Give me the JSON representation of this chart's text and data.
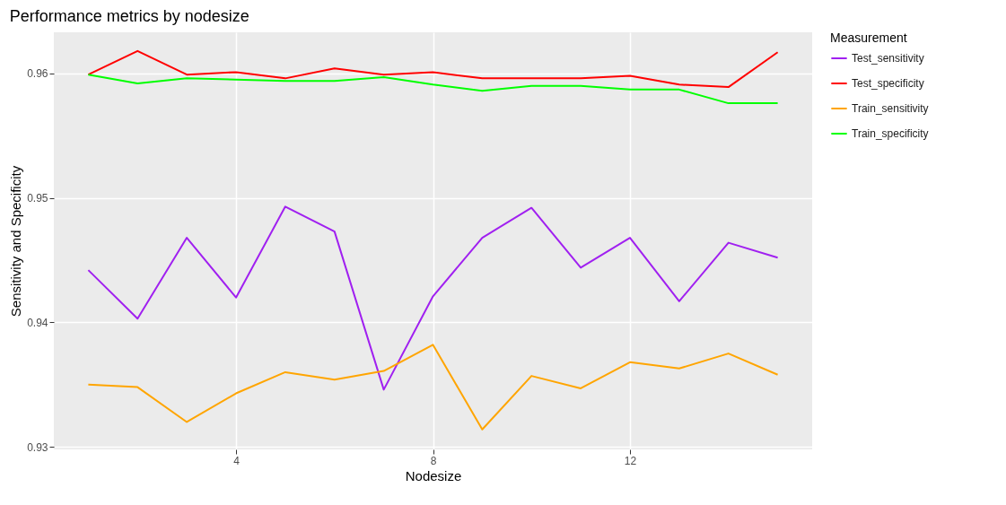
{
  "chart_data": {
    "type": "line",
    "title": "Performance metrics by nodesize",
    "xlabel": "Nodesize",
    "ylabel": "Sensitivity and Specificity",
    "legend_title": "Measurement",
    "legend": "right",
    "grid": true,
    "line_style": "solid",
    "x": [
      1,
      2,
      3,
      4,
      5,
      6,
      7,
      8,
      9,
      10,
      11,
      12,
      13,
      14,
      15
    ],
    "xlim": [
      0.3,
      15.7
    ],
    "xticks": [
      4,
      8,
      12
    ],
    "ylim": [
      0.9298,
      0.9633
    ],
    "yticks": [
      0.93,
      0.94,
      0.95,
      0.96
    ],
    "series": [
      {
        "name": "Test_sensitivity",
        "color": "#a020f0",
        "values": [
          0.9442,
          0.9403,
          0.9468,
          0.942,
          0.9493,
          0.9473,
          0.9346,
          0.9421,
          0.9468,
          0.9492,
          0.9444,
          0.9468,
          0.9417,
          0.9464,
          0.9452
        ]
      },
      {
        "name": "Test_specificity",
        "color": "#ff0000",
        "values": [
          0.9599,
          0.9618,
          0.9599,
          0.9601,
          0.9596,
          0.9604,
          0.9599,
          0.9601,
          0.9596,
          0.9596,
          0.9596,
          0.9598,
          0.9591,
          0.9589,
          0.9617
        ]
      },
      {
        "name": "Train_sensitivity",
        "color": "#ffa500",
        "values": [
          0.935,
          0.9348,
          0.932,
          0.9343,
          0.936,
          0.9354,
          0.9361,
          0.9382,
          0.9314,
          0.9357,
          0.9347,
          0.9368,
          0.9363,
          0.9375,
          0.9358
        ]
      },
      {
        "name": "Train_specificity",
        "color": "#00ff00",
        "values": [
          0.9599,
          0.9592,
          0.9596,
          0.9595,
          0.9594,
          0.9594,
          0.9597,
          0.9591,
          0.9586,
          0.959,
          0.959,
          0.9587,
          0.9587,
          0.9576,
          0.9576
        ]
      }
    ]
  }
}
